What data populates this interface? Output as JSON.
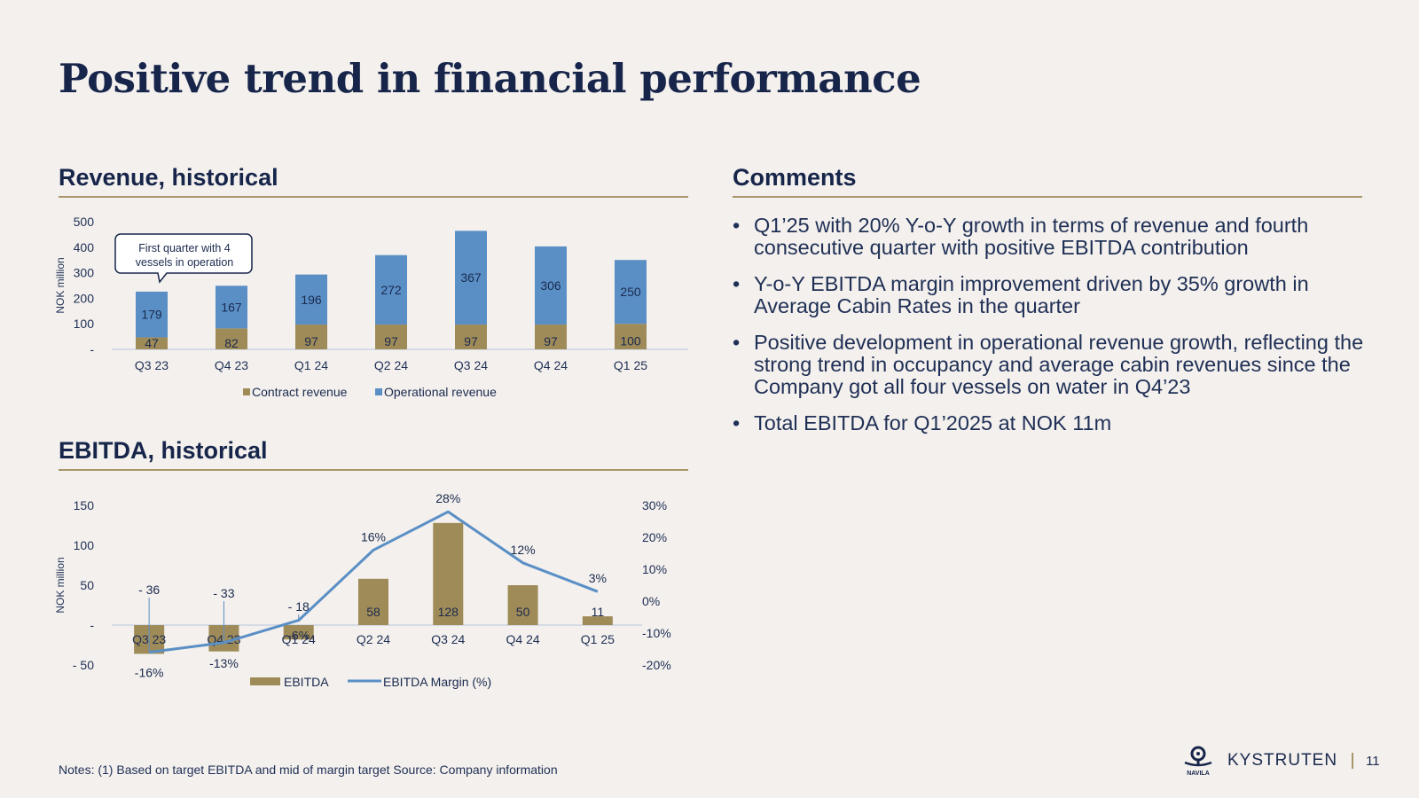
{
  "title": "Positive trend in financial performance",
  "sections": {
    "revenue_title": "Revenue, historical",
    "ebitda_title": "EBITDA, historical",
    "comments_title": "Comments"
  },
  "comments": [
    "Q1’25 with 20% Y-o-Y growth in terms of revenue and fourth consecutive quarter with positive EBITDA contribution",
    "Y-o-Y EBITDA margin improvement driven by 35% growth in Average Cabin Rates in the quarter",
    "Positive development in operational revenue growth, reflecting the strong trend in occupancy and average cabin revenues since the Company got all four vessels on water in Q4’23",
    "Total EBITDA for Q1’2025 at NOK 11m"
  ],
  "bullet_glyph": "•",
  "notes": "Notes: (1) Based on target EBITDA and mid of margin target Source: Company information",
  "footer": {
    "logo_word": "NAVILA",
    "brand": "KYSTRUTEN",
    "page": "11"
  },
  "colors": {
    "contract": "#9f8b58",
    "operational": "#5a8fc6",
    "line": "#5a8fc6",
    "navy": "#17254a",
    "rule": "#a8956a"
  },
  "chart_data": [
    {
      "type": "bar",
      "stacked": true,
      "title": "Revenue, historical",
      "ylabel": "NOK million",
      "ylim": [
        0,
        500
      ],
      "yticks": [
        0,
        100,
        200,
        300,
        400,
        500
      ],
      "ytick_labels": [
        "-",
        "100",
        "200",
        "300",
        "400",
        "500"
      ],
      "categories": [
        "Q3 23",
        "Q4 23",
        "Q1 24",
        "Q2 24",
        "Q3 24",
        "Q4 24",
        "Q1 25"
      ],
      "series": [
        {
          "name": "Contract revenue",
          "values": [
            47,
            82,
            97,
            97,
            97,
            97,
            100
          ],
          "labels": [
            "47",
            "82",
            "97",
            "97",
            "97",
            "97",
            "100"
          ]
        },
        {
          "name": "Operational revenue",
          "values": [
            179,
            167,
            196,
            272,
            367,
            306,
            250
          ],
          "labels": [
            "179",
            "167",
            "196",
            "272",
            "367",
            "306",
            "250"
          ]
        }
      ],
      "callout": "First quarter with 4 vessels in operation",
      "callout_lines": [
        "First quarter with 4",
        "vessels in operation"
      ]
    },
    {
      "type": "bar+line",
      "title": "EBITDA, historical",
      "ylabel": "NOK million",
      "ylim": [
        -50,
        150
      ],
      "yticks": [
        -50,
        0,
        50,
        100,
        150
      ],
      "ytick_labels": [
        "- 50",
        "-",
        "50",
        "100",
        "150"
      ],
      "y2lim": [
        -20,
        30
      ],
      "y2ticks": [
        -20,
        -10,
        0,
        10,
        20,
        30
      ],
      "y2tick_labels": [
        "-20%",
        "-10%",
        "0%",
        "10%",
        "20%",
        "30%"
      ],
      "categories": [
        "Q3 23",
        "Q4 23",
        "Q1 24",
        "Q2 24",
        "Q3 24",
        "Q4 24",
        "Q1 25"
      ],
      "series": [
        {
          "name": "EBITDA",
          "values": [
            -36,
            -33,
            -18,
            58,
            128,
            50,
            11
          ],
          "labels": [
            "- 36",
            "- 33",
            "- 18",
            "58",
            "128",
            "50",
            "11"
          ]
        },
        {
          "name": "EBITDA Margin (%)",
          "values": [
            -16,
            -13,
            -6,
            16,
            28,
            12,
            3
          ],
          "labels": [
            "-16%",
            "-13%",
            "-6%",
            "16%",
            "28%",
            "12%",
            "3%"
          ]
        }
      ]
    }
  ]
}
